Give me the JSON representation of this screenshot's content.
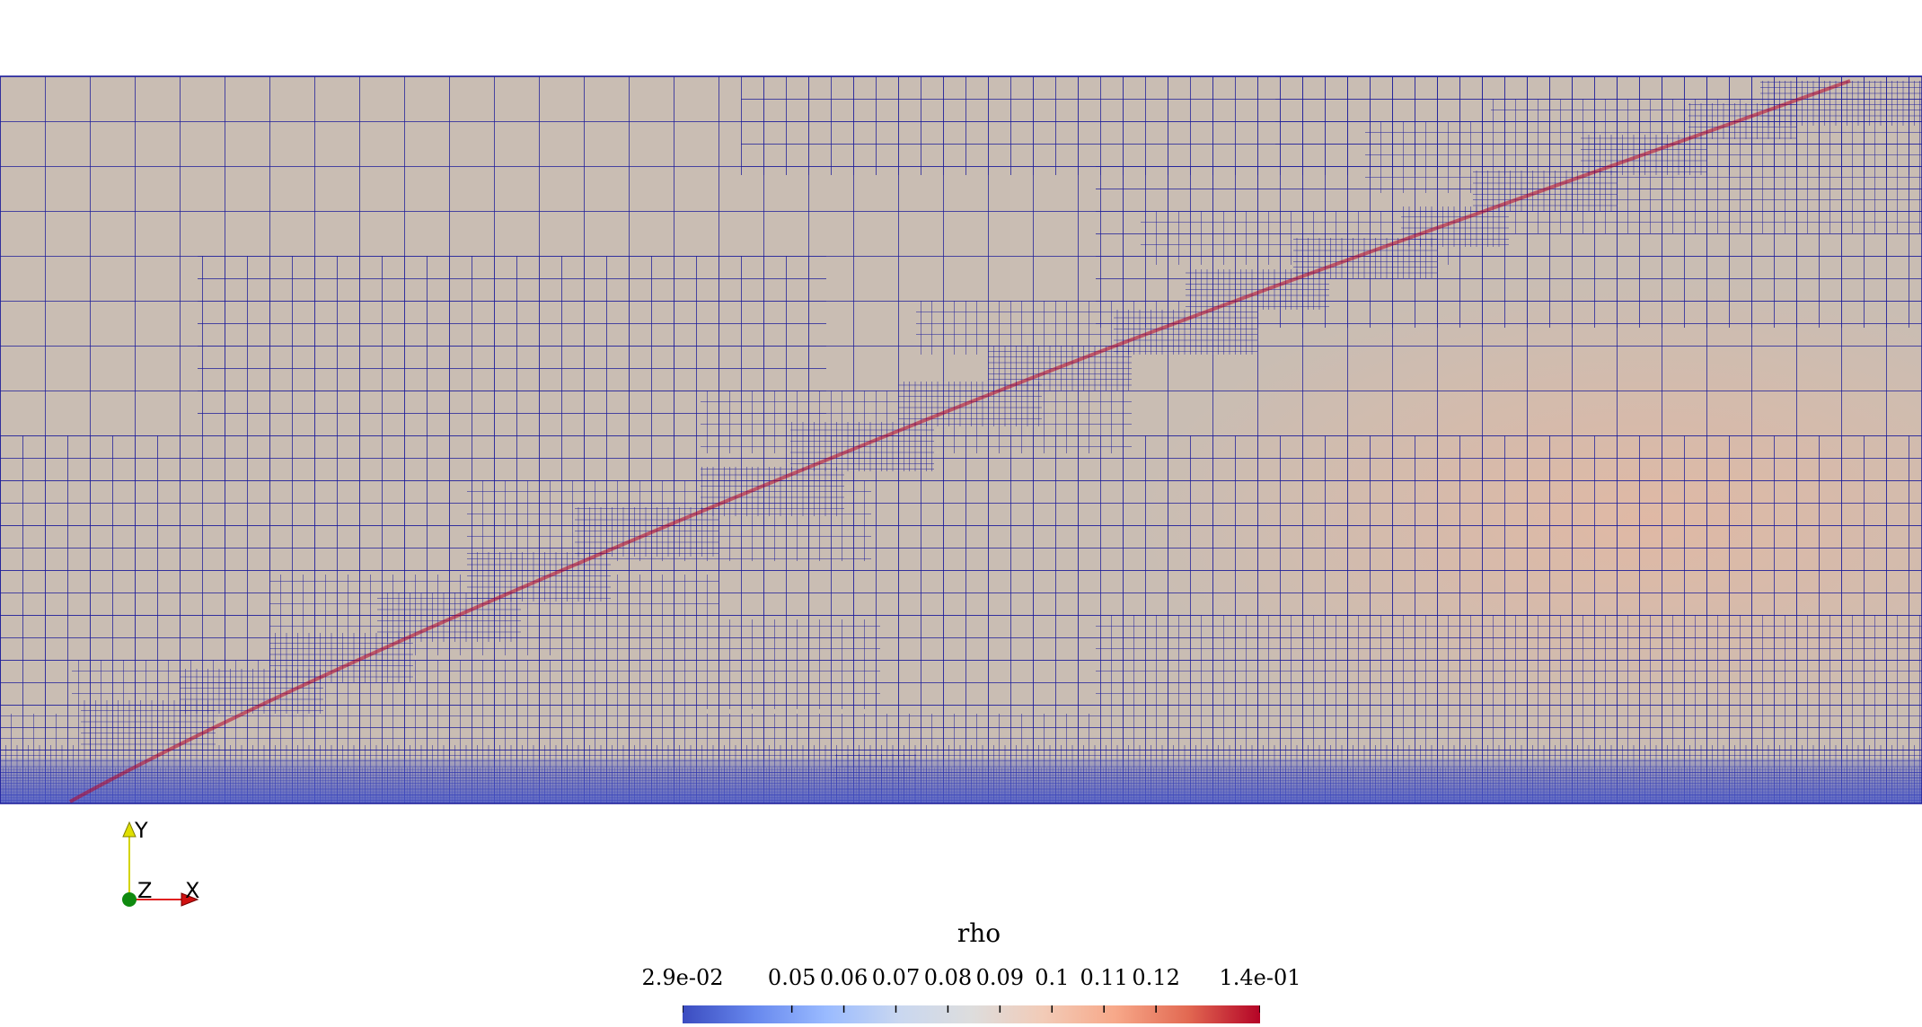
{
  "colorbar": {
    "title": "rho",
    "range": [
      0.029,
      0.14
    ],
    "colormap": [
      "#3b4cc0",
      "#6788ee",
      "#9abbff",
      "#c9d7f0",
      "#dddddd",
      "#f2cbb7",
      "#f7a889",
      "#e26952",
      "#b40426"
    ],
    "ticks": [
      {
        "label": "2.9e-02",
        "value": 0.029
      },
      {
        "label": "0.05",
        "value": 0.05
      },
      {
        "label": "0.06",
        "value": 0.06
      },
      {
        "label": "0.07",
        "value": 0.07
      },
      {
        "label": "0.08",
        "value": 0.08
      },
      {
        "label": "0.09",
        "value": 0.09
      },
      {
        "label": "0.1",
        "value": 0.1
      },
      {
        "label": "0.11",
        "value": 0.11
      },
      {
        "label": "0.12",
        "value": 0.12
      },
      {
        "label": "1.4e-01",
        "value": 0.14
      }
    ]
  },
  "axes": {
    "x_label": "X",
    "y_label": "Y",
    "z_label": "Z"
  },
  "colors": {
    "mesh_lines": "#1c1c9a",
    "background_fill": "#c9bdb3",
    "shock_color": "#b40426",
    "warm_region": "#e2b8a3",
    "boundary_layer": "#4a58c8"
  }
}
